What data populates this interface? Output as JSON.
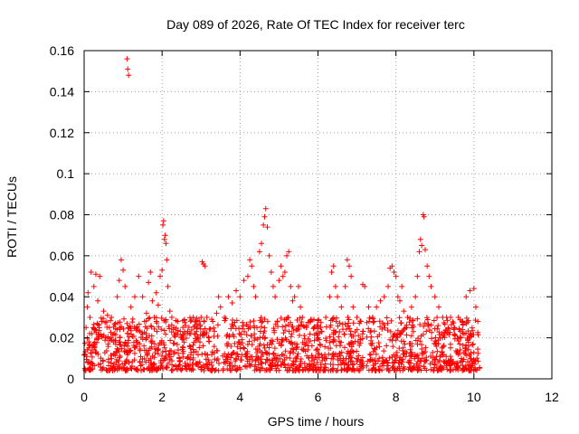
{
  "chart_data": {
    "type": "scatter",
    "title": "Day 089 of 2026, Rate Of TEC Index for receiver terc",
    "xlabel": "GPS time / hours",
    "ylabel": "ROTI / TECUs",
    "xlim": [
      0,
      12
    ],
    "ylim": [
      0,
      0.16
    ],
    "xticks": [
      0,
      2,
      4,
      6,
      8,
      10,
      12
    ],
    "yticks": [
      0,
      0.02,
      0.04,
      0.06,
      0.08,
      0.1,
      0.12,
      0.14,
      0.16
    ],
    "xtick_labels": [
      "0",
      "2",
      "4",
      "6",
      "8",
      "10",
      "12"
    ],
    "ytick_labels": [
      "0",
      "0.02",
      "0.04",
      "0.06",
      "0.08",
      "0.1",
      "0.12",
      "0.14",
      "0.16"
    ],
    "grid": true,
    "marker": "+",
    "color": "#ff0000",
    "series": [
      {
        "points": [
          [
            0.02,
            0.012
          ],
          [
            0.05,
            0.025
          ],
          [
            0.08,
            0.035
          ],
          [
            0.1,
            0.042
          ],
          [
            0.12,
            0.018
          ],
          [
            0.15,
            0.03
          ],
          [
            0.18,
            0.052
          ],
          [
            0.2,
            0.022
          ],
          [
            0.25,
            0.045
          ],
          [
            0.3,
            0.051
          ],
          [
            0.35,
            0.038
          ],
          [
            0.4,
            0.05
          ],
          [
            0.45,
            0.028
          ],
          [
            0.5,
            0.033
          ],
          [
            0.55,
            0.02
          ],
          [
            0.6,
            0.031
          ],
          [
            0.65,
            0.025
          ],
          [
            0.7,
            0.03
          ],
          [
            0.75,
            0.018
          ],
          [
            0.8,
            0.027
          ],
          [
            0.85,
            0.04
          ],
          [
            0.9,
            0.048
          ],
          [
            0.95,
            0.058
          ],
          [
            1.0,
            0.053
          ],
          [
            1.05,
            0.045
          ],
          [
            1.1,
            0.156
          ],
          [
            1.12,
            0.151
          ],
          [
            1.14,
            0.148
          ],
          [
            1.2,
            0.035
          ],
          [
            1.3,
            0.04
          ],
          [
            1.35,
            0.025
          ],
          [
            1.4,
            0.05
          ],
          [
            1.5,
            0.04
          ],
          [
            1.55,
            0.028
          ],
          [
            1.6,
            0.032
          ],
          [
            1.65,
            0.047
          ],
          [
            1.7,
            0.052
          ],
          [
            1.75,
            0.038
          ],
          [
            1.8,
            0.03
          ],
          [
            1.85,
            0.042
          ],
          [
            1.9,
            0.036
          ],
          [
            1.95,
            0.05
          ],
          [
            2.0,
            0.053
          ],
          [
            2.02,
            0.075
          ],
          [
            2.04,
            0.077
          ],
          [
            2.06,
            0.068
          ],
          [
            2.08,
            0.07
          ],
          [
            2.1,
            0.066
          ],
          [
            2.12,
            0.058
          ],
          [
            2.15,
            0.045
          ],
          [
            2.2,
            0.033
          ],
          [
            2.25,
            0.03
          ],
          [
            2.3,
            0.025
          ],
          [
            2.4,
            0.028
          ],
          [
            2.5,
            0.02
          ],
          [
            2.6,
            0.026
          ],
          [
            2.7,
            0.022
          ],
          [
            2.8,
            0.03
          ],
          [
            2.9,
            0.025
          ],
          [
            3.0,
            0.03
          ],
          [
            3.03,
            0.057
          ],
          [
            3.06,
            0.056
          ],
          [
            3.1,
            0.055
          ],
          [
            3.15,
            0.03
          ],
          [
            3.2,
            0.02
          ],
          [
            3.3,
            0.028
          ],
          [
            3.4,
            0.032
          ],
          [
            3.45,
            0.04
          ],
          [
            3.5,
            0.035
          ],
          [
            3.6,
            0.03
          ],
          [
            3.7,
            0.04
          ],
          [
            3.8,
            0.037
          ],
          [
            3.9,
            0.043
          ],
          [
            4.0,
            0.04
          ],
          [
            4.1,
            0.048
          ],
          [
            4.2,
            0.05
          ],
          [
            4.25,
            0.058
          ],
          [
            4.3,
            0.055
          ],
          [
            4.35,
            0.045
          ],
          [
            4.4,
            0.04
          ],
          [
            4.5,
            0.062
          ],
          [
            4.55,
            0.066
          ],
          [
            4.6,
            0.075
          ],
          [
            4.63,
            0.079
          ],
          [
            4.66,
            0.083
          ],
          [
            4.7,
            0.074
          ],
          [
            4.75,
            0.06
          ],
          [
            4.8,
            0.052
          ],
          [
            4.85,
            0.045
          ],
          [
            4.9,
            0.04
          ],
          [
            5.0,
            0.048
          ],
          [
            5.05,
            0.055
          ],
          [
            5.1,
            0.05
          ],
          [
            5.15,
            0.052
          ],
          [
            5.2,
            0.06
          ],
          [
            5.25,
            0.062
          ],
          [
            5.3,
            0.045
          ],
          [
            5.35,
            0.038
          ],
          [
            5.4,
            0.04
          ],
          [
            5.5,
            0.045
          ],
          [
            5.55,
            0.035
          ],
          [
            5.6,
            0.03
          ],
          [
            5.7,
            0.025
          ],
          [
            5.8,
            0.028
          ],
          [
            5.9,
            0.025
          ],
          [
            6.0,
            0.02
          ],
          [
            6.1,
            0.023
          ],
          [
            6.2,
            0.03
          ],
          [
            6.3,
            0.04
          ],
          [
            6.35,
            0.052
          ],
          [
            6.4,
            0.055
          ],
          [
            6.45,
            0.045
          ],
          [
            6.5,
            0.04
          ],
          [
            6.6,
            0.035
          ],
          [
            6.7,
            0.045
          ],
          [
            6.75,
            0.058
          ],
          [
            6.8,
            0.055
          ],
          [
            6.85,
            0.05
          ],
          [
            6.9,
            0.035
          ],
          [
            7.0,
            0.03
          ],
          [
            7.1,
            0.028
          ],
          [
            7.15,
            0.046
          ],
          [
            7.2,
            0.045
          ],
          [
            7.3,
            0.035
          ],
          [
            7.4,
            0.03
          ],
          [
            7.5,
            0.035
          ],
          [
            7.6,
            0.038
          ],
          [
            7.7,
            0.04
          ],
          [
            7.8,
            0.045
          ],
          [
            7.85,
            0.054
          ],
          [
            7.9,
            0.055
          ],
          [
            7.95,
            0.052
          ],
          [
            8.0,
            0.05
          ],
          [
            8.05,
            0.04
          ],
          [
            8.1,
            0.038
          ],
          [
            8.15,
            0.045
          ],
          [
            8.2,
            0.033
          ],
          [
            8.3,
            0.03
          ],
          [
            8.4,
            0.035
          ],
          [
            8.5,
            0.04
          ],
          [
            8.55,
            0.05
          ],
          [
            8.6,
            0.062
          ],
          [
            8.63,
            0.068
          ],
          [
            8.66,
            0.065
          ],
          [
            8.7,
            0.08
          ],
          [
            8.72,
            0.079
          ],
          [
            8.75,
            0.063
          ],
          [
            8.8,
            0.055
          ],
          [
            8.85,
            0.05
          ],
          [
            8.9,
            0.045
          ],
          [
            9.0,
            0.04
          ],
          [
            9.1,
            0.035
          ],
          [
            9.2,
            0.03
          ],
          [
            9.3,
            0.03
          ],
          [
            9.4,
            0.03
          ],
          [
            9.5,
            0.025
          ],
          [
            9.6,
            0.03
          ],
          [
            9.7,
            0.028
          ],
          [
            9.8,
            0.04
          ],
          [
            9.9,
            0.043
          ],
          [
            10.0,
            0.044
          ],
          [
            10.05,
            0.035
          ],
          [
            10.1,
            0.028
          ]
        ],
        "band": {
          "x_segments": [
            [
              0.0,
              3.48
            ],
            [
              3.55,
              7.18
            ],
            [
              7.25,
              10.15
            ]
          ],
          "y_range": [
            0.004,
            0.03
          ],
          "count": 1600
        }
      }
    ]
  }
}
